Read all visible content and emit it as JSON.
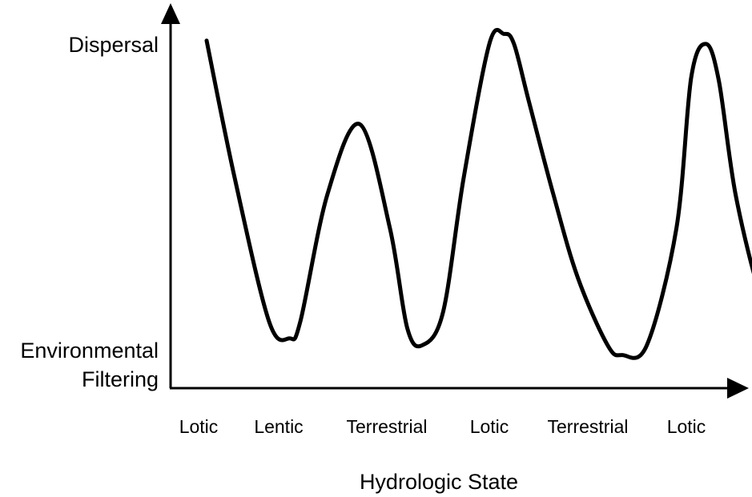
{
  "chart_data": {
    "type": "line",
    "title": "",
    "xlabel": "Hydrologic State",
    "ylabel": "",
    "y_axis_labels": {
      "top": "Dispersal",
      "bottom_line1": "Environmental",
      "bottom_line2": "Filtering"
    },
    "categories": [
      "Lotic",
      "Lentic",
      "Terrestrial",
      "Lotic",
      "Terrestrial",
      "Lotic"
    ],
    "ylim": [
      0,
      1
    ],
    "grid": false,
    "legend": "none",
    "series": [
      {
        "x": [
          0.1,
          0.45,
          0.88,
          1.1,
          1.2,
          1.45,
          1.75,
          2.03,
          2.2,
          2.35,
          2.55,
          2.75,
          3.0,
          3.15,
          3.25,
          3.4,
          3.65,
          3.9,
          4.2,
          4.35,
          4.6,
          4.9,
          5.05,
          5.2,
          5.33,
          5.5,
          5.75,
          5.9
        ],
        "values": [
          0.96,
          0.55,
          0.12,
          0.07,
          0.12,
          0.5,
          0.71,
          0.4,
          0.1,
          0.05,
          0.15,
          0.55,
          0.95,
          0.98,
          0.95,
          0.78,
          0.5,
          0.25,
          0.05,
          0.02,
          0.05,
          0.4,
          0.85,
          0.95,
          0.84,
          0.5,
          0.2,
          0.15
        ],
        "color": "#000000"
      }
    ]
  }
}
